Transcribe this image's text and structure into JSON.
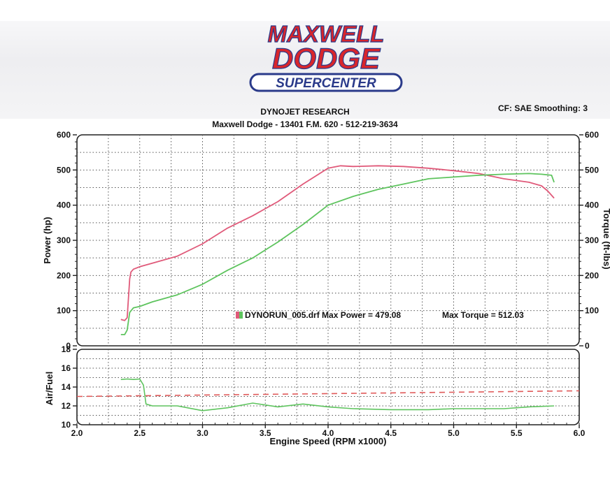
{
  "logo": {
    "line1": "MAXWELL",
    "line2": "DODGE",
    "line3": "SUPERCENTER",
    "colors": {
      "red": "#d8262c",
      "blue": "#2a3a8a"
    }
  },
  "header": {
    "title": "DYNOJET RESEARCH",
    "subtitle": "Maxwell Dodge - 13401 F.M. 620 - 512-219-3634",
    "cf_info": "CF: SAE  Smoothing: 3"
  },
  "chart_data": [
    {
      "type": "line",
      "xlabel": "",
      "ylabel": "Power (hp)",
      "y2label": "Torque (ft-lbs)",
      "xlim": [
        2.0,
        6.0
      ],
      "ylim": [
        0,
        600
      ],
      "y2lim": [
        0,
        600
      ],
      "yticks": [
        0,
        100,
        200,
        300,
        400,
        500,
        600
      ],
      "y2ticks": [
        0,
        100,
        200,
        300,
        400,
        500,
        600
      ],
      "grid": true,
      "series": [
        {
          "axis": "right",
          "color": "#e05a7a",
          "x": [
            2.35,
            2.38,
            2.4,
            2.42,
            2.43,
            2.45,
            2.5,
            2.6,
            2.8,
            3.0,
            3.2,
            3.4,
            3.6,
            3.8,
            4.0,
            4.1,
            4.2,
            4.4,
            4.6,
            4.8,
            5.0,
            5.2,
            5.4,
            5.6,
            5.7,
            5.75,
            5.8
          ],
          "values": [
            75,
            72,
            80,
            190,
            210,
            218,
            225,
            235,
            255,
            290,
            335,
            370,
            410,
            460,
            505,
            512,
            510,
            512,
            510,
            505,
            498,
            490,
            475,
            465,
            455,
            440,
            420
          ]
        },
        {
          "axis": "left",
          "color": "#5ec45e",
          "x": [
            2.35,
            2.38,
            2.4,
            2.42,
            2.45,
            2.5,
            2.6,
            2.8,
            3.0,
            3.2,
            3.4,
            3.6,
            3.8,
            4.0,
            4.2,
            4.4,
            4.6,
            4.8,
            5.0,
            5.2,
            5.4,
            5.6,
            5.7,
            5.78,
            5.8
          ],
          "values": [
            32,
            32,
            45,
            95,
            108,
            112,
            125,
            145,
            175,
            215,
            250,
            295,
            345,
            400,
            425,
            445,
            460,
            475,
            480,
            485,
            488,
            490,
            488,
            485,
            465
          ]
        }
      ],
      "annotations": [
        {
          "swatch_colors": [
            "#e05a7a",
            "#5ec45e"
          ],
          "text": "DYNORUN_005.drf Max Power = 479.08"
        },
        {
          "text": "Max Torque = 512.03"
        }
      ]
    },
    {
      "type": "line",
      "xlabel": "Engine Speed (RPM x1000)",
      "ylabel": "Air/Fuel",
      "xlim": [
        2.0,
        6.0
      ],
      "ylim": [
        10,
        18
      ],
      "xticks": [
        2.0,
        2.5,
        3.0,
        3.5,
        4.0,
        4.5,
        5.0,
        5.5,
        6.0
      ],
      "yticks": [
        10,
        12,
        14,
        16,
        18
      ],
      "grid": true,
      "series": [
        {
          "color": "#5ec45e",
          "x": [
            2.35,
            2.4,
            2.45,
            2.5,
            2.53,
            2.55,
            2.6,
            2.8,
            3.0,
            3.2,
            3.4,
            3.6,
            3.8,
            4.0,
            4.2,
            4.5,
            4.8,
            5.0,
            5.2,
            5.4,
            5.6,
            5.8
          ],
          "values": [
            14.8,
            14.85,
            14.8,
            14.85,
            14.2,
            12.2,
            12.0,
            12.0,
            11.5,
            11.8,
            12.3,
            11.9,
            12.2,
            11.9,
            11.7,
            11.6,
            11.6,
            11.7,
            11.7,
            11.7,
            11.9,
            12.0
          ]
        },
        {
          "color": "#e05a5a",
          "dashed": true,
          "x": [
            2.0,
            6.0
          ],
          "values": [
            13.0,
            13.6
          ]
        }
      ]
    }
  ]
}
